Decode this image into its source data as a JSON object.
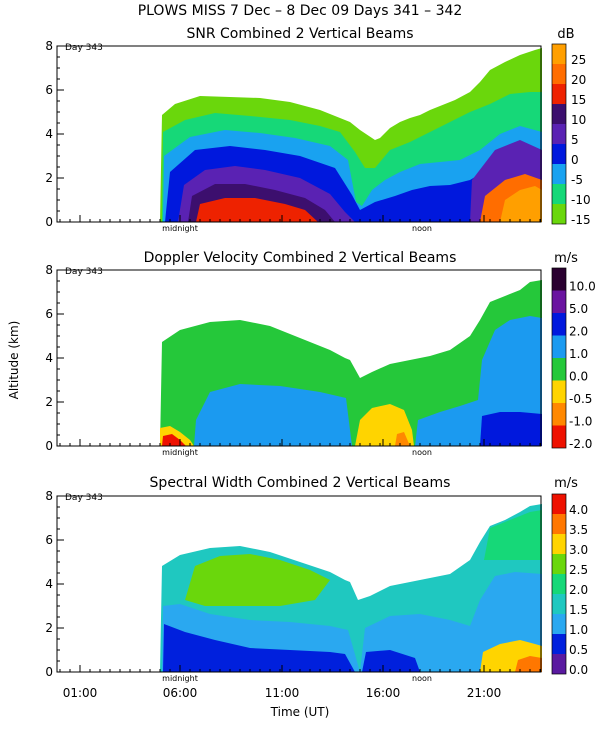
{
  "header": {
    "title": "PLOWS MISS    7 Dec –  8 Dec 09 Days 341 – 342"
  },
  "chart_data": [
    {
      "type": "heatmap",
      "title": "SNR Combined 2 Vertical Beams",
      "ylabel": "",
      "ylim": [
        0,
        8
      ],
      "yticks": [
        "0",
        "2",
        "4",
        "6",
        "8"
      ],
      "day_label": "Day 343",
      "markers": [
        "midnight",
        "noon"
      ],
      "colorbar": {
        "units": "dB",
        "labels": [
          "25",
          "20",
          "15",
          "10",
          "5",
          "0",
          "-5",
          "-10",
          "-15"
        ],
        "colors": [
          "#ff9f00",
          "#ff6d00",
          "#ee2200",
          "#3c0f6e",
          "#5a22b3",
          "#0018dd",
          "#19a2f0",
          "#16d878",
          "#6ad70c"
        ]
      }
    },
    {
      "type": "heatmap",
      "title": "Doppler Velocity Combined 2 Vertical Beams",
      "ylabel": "Altitude (km)",
      "ylim": [
        0,
        8
      ],
      "yticks": [
        "0",
        "2",
        "4",
        "6",
        "8"
      ],
      "day_label": "Day 343",
      "markers": [
        "midnight",
        "noon"
      ],
      "colorbar": {
        "units": "m/s",
        "labels": [
          "10.0",
          "5.0",
          "2.0",
          "1.0",
          "0.0",
          "-0.5",
          "-1.0",
          "-2.0"
        ],
        "colors": [
          "#2a0030",
          "#6a14a0",
          "#0018dd",
          "#1b9af0",
          "#25c83a",
          "#ffd400",
          "#ff8800",
          "#ee1100"
        ]
      }
    },
    {
      "type": "heatmap",
      "title": "Spectral Width Combined 2 Vertical Beams",
      "xlabel": "Time (UT)",
      "ylabel": "",
      "ylim": [
        0,
        8
      ],
      "yticks": [
        "0",
        "2",
        "4",
        "6",
        "8"
      ],
      "xticks": [
        "01:00",
        "06:00",
        "11:00",
        "16:00",
        "21:00"
      ],
      "day_label": "Day 343",
      "markers": [
        "midnight",
        "noon"
      ],
      "colorbar": {
        "units": "m/s",
        "labels": [
          "4.0",
          "3.5",
          "3.0",
          "2.5",
          "2.0",
          "1.5",
          "1.0",
          "0.5",
          "0.0"
        ],
        "colors": [
          "#ee1100",
          "#ff7700",
          "#ffd400",
          "#6ad70c",
          "#16d878",
          "#1fc8c0",
          "#2aa8f0",
          "#0020dd",
          "#5a1aa0"
        ]
      }
    }
  ]
}
